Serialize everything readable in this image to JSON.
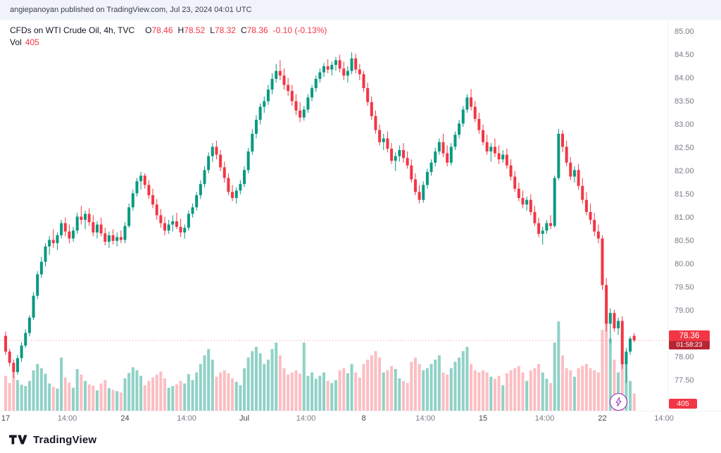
{
  "attribution": {
    "text": "angiepanoyan published on TradingView.com, Jul 23, 2024 04:01 UTC"
  },
  "legend": {
    "symbol_title": "CFDs on WTI Crude Oil, 4h, TVC",
    "o_label": "O",
    "o_value": "78.46",
    "h_label": "H",
    "h_value": "78.52",
    "l_label": "L",
    "l_value": "78.32",
    "c_label": "C",
    "c_value": "78.36",
    "change": "-0.10 (-0.13%)",
    "vol_label": "Vol",
    "vol_value": "405"
  },
  "price_axis": {
    "ticks": [
      "85.00",
      "84.50",
      "84.00",
      "83.50",
      "83.00",
      "82.50",
      "82.00",
      "81.50",
      "81.00",
      "80.50",
      "80.00",
      "79.50",
      "79.00",
      "78.50",
      "78.00",
      "77.50"
    ],
    "last_price_badge": {
      "price": "78.36",
      "countdown": "01:58:23"
    },
    "volume_badge": "405"
  },
  "time_axis": {
    "labels": [
      {
        "text": "17",
        "index": 0,
        "major": true
      },
      {
        "text": "14:00",
        "index": 15.5,
        "major": false
      },
      {
        "text": "24",
        "index": 30,
        "major": true
      },
      {
        "text": "14:00",
        "index": 45.5,
        "major": false
      },
      {
        "text": "Jul",
        "index": 60,
        "major": true
      },
      {
        "text": "14:00",
        "index": 75.5,
        "major": false
      },
      {
        "text": "8",
        "index": 90,
        "major": true
      },
      {
        "text": "14:00",
        "index": 105.5,
        "major": false
      },
      {
        "text": "15",
        "index": 120,
        "major": true
      },
      {
        "text": "14:00",
        "index": 135.5,
        "major": false
      },
      {
        "text": "22",
        "index": 150,
        "major": true
      },
      {
        "text": "14:00",
        "index": 165.5,
        "major": false
      }
    ]
  },
  "footer": {
    "brand": "TradingView"
  },
  "colors": {
    "up": "#089981",
    "down": "#f23645",
    "volume_up": "rgba(8,153,129,0.45)",
    "volume_down": "rgba(242,54,69,0.32)",
    "badge": "#f23645",
    "accent_purple": "#9c27b0"
  },
  "chart_data": {
    "type": "candlestick",
    "title": "CFDs on WTI Crude Oil, 4h, TVC",
    "symbol": "CFDs on WTI Crude Oil",
    "interval": "4h",
    "exchange": "TVC",
    "last": {
      "open": 78.46,
      "high": 78.52,
      "low": 78.32,
      "close": 78.36,
      "change": -0.1,
      "change_pct": -0.13,
      "volume": 405,
      "bar_time_remaining": "01:58:23"
    },
    "ylim": [
      76.85,
      85.25
    ],
    "x_range": "Jun 17 - Jul 23, 2024",
    "volume_scale_max": 2400,
    "ohlc_format": [
      "open",
      "high",
      "low",
      "close",
      "volume"
    ],
    "candles": [
      [
        78.46,
        78.55,
        78.05,
        78.12,
        820
      ],
      [
        78.12,
        78.18,
        77.8,
        77.88,
        650
      ],
      [
        77.88,
        77.95,
        77.55,
        77.68,
        900
      ],
      [
        77.68,
        78.05,
        77.62,
        77.98,
        720
      ],
      [
        77.98,
        78.32,
        77.9,
        78.25,
        610
      ],
      [
        78.25,
        78.6,
        78.2,
        78.52,
        580
      ],
      [
        78.52,
        78.9,
        78.45,
        78.85,
        700
      ],
      [
        78.85,
        79.4,
        78.8,
        79.32,
        950
      ],
      [
        79.32,
        79.85,
        79.25,
        79.78,
        1100
      ],
      [
        79.78,
        80.15,
        79.7,
        80.05,
        1000
      ],
      [
        80.05,
        80.45,
        79.95,
        80.38,
        870
      ],
      [
        80.38,
        80.6,
        80.2,
        80.52,
        640
      ],
      [
        80.52,
        80.75,
        80.35,
        80.45,
        560
      ],
      [
        80.45,
        80.68,
        80.3,
        80.62,
        520
      ],
      [
        80.62,
        80.95,
        80.55,
        80.88,
        1250
      ],
      [
        80.88,
        81.0,
        80.6,
        80.7,
        780
      ],
      [
        80.7,
        80.85,
        80.45,
        80.55,
        660
      ],
      [
        80.55,
        80.8,
        80.48,
        80.72,
        540
      ],
      [
        80.72,
        81.1,
        80.65,
        81.02,
        980
      ],
      [
        81.02,
        81.25,
        80.85,
        80.95,
        850
      ],
      [
        80.95,
        81.15,
        80.75,
        81.08,
        700
      ],
      [
        81.08,
        81.2,
        80.82,
        80.9,
        620
      ],
      [
        80.9,
        81.05,
        80.6,
        80.68,
        590
      ],
      [
        80.68,
        80.92,
        80.55,
        80.85,
        480
      ],
      [
        80.85,
        81.0,
        80.6,
        80.66,
        640
      ],
      [
        80.66,
        80.78,
        80.4,
        80.48,
        720
      ],
      [
        80.48,
        80.7,
        80.35,
        80.62,
        530
      ],
      [
        80.62,
        80.75,
        80.42,
        80.5,
        490
      ],
      [
        80.5,
        80.68,
        80.38,
        80.58,
        460
      ],
      [
        80.58,
        80.72,
        80.45,
        80.52,
        430
      ],
      [
        80.52,
        80.9,
        80.45,
        80.82,
        760
      ],
      [
        80.82,
        81.3,
        80.78,
        81.22,
        890
      ],
      [
        81.22,
        81.6,
        81.15,
        81.52,
        1020
      ],
      [
        81.52,
        81.85,
        81.45,
        81.78,
        950
      ],
      [
        81.78,
        81.98,
        81.6,
        81.9,
        820
      ],
      [
        81.9,
        81.95,
        81.62,
        81.7,
        600
      ],
      [
        81.7,
        81.8,
        81.4,
        81.48,
        700
      ],
      [
        81.48,
        81.62,
        81.2,
        81.28,
        780
      ],
      [
        81.28,
        81.4,
        80.95,
        81.05,
        850
      ],
      [
        81.05,
        81.18,
        80.78,
        80.88,
        920
      ],
      [
        80.88,
        81.02,
        80.62,
        80.72,
        760
      ],
      [
        80.72,
        80.95,
        80.65,
        80.85,
        540
      ],
      [
        80.85,
        81.05,
        80.7,
        80.92,
        580
      ],
      [
        80.92,
        81.1,
        80.75,
        80.8,
        620
      ],
      [
        80.8,
        80.98,
        80.58,
        80.68,
        700
      ],
      [
        80.68,
        80.85,
        80.55,
        80.78,
        640
      ],
      [
        80.78,
        81.15,
        80.72,
        81.08,
        860
      ],
      [
        81.08,
        81.3,
        81.0,
        81.22,
        720
      ],
      [
        81.22,
        81.55,
        81.15,
        81.48,
        900
      ],
      [
        81.48,
        81.8,
        81.4,
        81.72,
        1100
      ],
      [
        81.72,
        82.1,
        81.65,
        82.02,
        1300
      ],
      [
        82.02,
        82.4,
        81.95,
        82.32,
        1450
      ],
      [
        82.32,
        82.6,
        82.2,
        82.52,
        1200
      ],
      [
        82.52,
        82.65,
        82.25,
        82.35,
        800
      ],
      [
        82.35,
        82.45,
        82.0,
        82.08,
        900
      ],
      [
        82.08,
        82.2,
        81.75,
        81.85,
        950
      ],
      [
        81.85,
        81.95,
        81.48,
        81.55,
        880
      ],
      [
        81.55,
        81.7,
        81.35,
        81.42,
        760
      ],
      [
        81.42,
        81.65,
        81.3,
        81.58,
        680
      ],
      [
        81.58,
        81.8,
        81.5,
        81.72,
        600
      ],
      [
        81.72,
        82.1,
        81.65,
        82.02,
        1000
      ],
      [
        82.02,
        82.5,
        81.95,
        82.42,
        1250
      ],
      [
        82.42,
        82.9,
        82.35,
        82.8,
        1400
      ],
      [
        82.8,
        83.2,
        82.7,
        83.1,
        1500
      ],
      [
        83.1,
        83.45,
        83.0,
        83.38,
        1350
      ],
      [
        83.38,
        83.6,
        83.25,
        83.5,
        1100
      ],
      [
        83.5,
        83.85,
        83.42,
        83.75,
        1200
      ],
      [
        83.75,
        84.1,
        83.65,
        83.98,
        1450
      ],
      [
        83.98,
        84.3,
        83.9,
        84.15,
        1600
      ],
      [
        84.15,
        84.38,
        83.95,
        84.05,
        1300
      ],
      [
        84.05,
        84.2,
        83.75,
        83.85,
        1000
      ],
      [
        83.85,
        84.0,
        83.62,
        83.72,
        850
      ],
      [
        83.72,
        83.85,
        83.4,
        83.5,
        900
      ],
      [
        83.5,
        83.65,
        83.2,
        83.3,
        950
      ],
      [
        83.3,
        83.48,
        83.05,
        83.15,
        870
      ],
      [
        83.15,
        83.4,
        83.08,
        83.32,
        1600
      ],
      [
        83.32,
        83.65,
        83.25,
        83.58,
        820
      ],
      [
        83.58,
        83.85,
        83.5,
        83.78,
        900
      ],
      [
        83.78,
        84.05,
        83.7,
        83.98,
        750
      ],
      [
        83.98,
        84.2,
        83.9,
        84.12,
        820
      ],
      [
        84.12,
        84.32,
        84.02,
        84.25,
        900
      ],
      [
        84.25,
        84.4,
        84.1,
        84.18,
        700
      ],
      [
        84.18,
        84.35,
        84.05,
        84.28,
        650
      ],
      [
        84.28,
        84.45,
        84.15,
        84.38,
        720
      ],
      [
        84.38,
        84.5,
        84.12,
        84.2,
        950
      ],
      [
        84.2,
        84.35,
        83.95,
        84.05,
        1000
      ],
      [
        84.05,
        84.25,
        83.9,
        84.15,
        880
      ],
      [
        84.15,
        84.55,
        84.08,
        84.42,
        1100
      ],
      [
        84.42,
        84.52,
        84.1,
        84.18,
        900
      ],
      [
        84.18,
        84.3,
        83.95,
        84.08,
        780
      ],
      [
        84.08,
        84.15,
        83.7,
        83.78,
        1100
      ],
      [
        83.78,
        83.9,
        83.4,
        83.48,
        1200
      ],
      [
        83.48,
        83.6,
        83.1,
        83.18,
        1300
      ],
      [
        83.18,
        83.3,
        82.8,
        82.88,
        1400
      ],
      [
        82.88,
        83.0,
        82.55,
        82.62,
        1250
      ],
      [
        82.62,
        82.8,
        82.45,
        82.7,
        900
      ],
      [
        82.7,
        82.85,
        82.4,
        82.48,
        950
      ],
      [
        82.48,
        82.6,
        82.15,
        82.22,
        1050
      ],
      [
        82.22,
        82.4,
        82.0,
        82.32,
        980
      ],
      [
        82.32,
        82.55,
        82.2,
        82.45,
        760
      ],
      [
        82.45,
        82.6,
        82.18,
        82.28,
        700
      ],
      [
        82.28,
        82.42,
        82.05,
        82.12,
        650
      ],
      [
        82.12,
        82.25,
        81.75,
        81.82,
        1150
      ],
      [
        81.82,
        81.95,
        81.48,
        81.55,
        1250
      ],
      [
        81.55,
        81.7,
        81.3,
        81.38,
        1100
      ],
      [
        81.38,
        81.78,
        81.32,
        81.7,
        950
      ],
      [
        81.7,
        82.05,
        81.62,
        81.98,
        1000
      ],
      [
        81.98,
        82.25,
        81.9,
        82.18,
        1100
      ],
      [
        82.18,
        82.5,
        82.1,
        82.42,
        1200
      ],
      [
        82.42,
        82.7,
        82.35,
        82.62,
        1300
      ],
      [
        82.62,
        82.8,
        82.3,
        82.38,
        900
      ],
      [
        82.38,
        82.55,
        82.1,
        82.18,
        850
      ],
      [
        82.18,
        82.6,
        82.12,
        82.52,
        1000
      ],
      [
        82.52,
        82.85,
        82.45,
        82.78,
        1150
      ],
      [
        82.78,
        83.1,
        82.7,
        83.02,
        1250
      ],
      [
        83.02,
        83.4,
        82.95,
        83.32,
        1400
      ],
      [
        83.32,
        83.65,
        83.25,
        83.58,
        1500
      ],
      [
        83.58,
        83.76,
        83.3,
        83.38,
        1100
      ],
      [
        83.38,
        83.5,
        83.05,
        83.12,
        950
      ],
      [
        83.12,
        83.25,
        82.8,
        82.88,
        900
      ],
      [
        82.88,
        83.0,
        82.55,
        82.62,
        950
      ],
      [
        82.62,
        82.78,
        82.35,
        82.42,
        900
      ],
      [
        82.42,
        82.6,
        82.2,
        82.52,
        800
      ],
      [
        82.52,
        82.7,
        82.3,
        82.38,
        750
      ],
      [
        82.38,
        82.55,
        82.15,
        82.25,
        820
      ],
      [
        82.25,
        82.45,
        82.18,
        82.35,
        600
      ],
      [
        82.35,
        82.48,
        82.05,
        82.12,
        880
      ],
      [
        82.12,
        82.25,
        81.8,
        81.88,
        950
      ],
      [
        81.88,
        82.0,
        81.55,
        81.62,
        1000
      ],
      [
        81.62,
        81.75,
        81.35,
        81.42,
        1050
      ],
      [
        81.42,
        81.58,
        81.2,
        81.28,
        900
      ],
      [
        81.28,
        81.45,
        81.15,
        81.38,
        700
      ],
      [
        81.38,
        81.5,
        81.05,
        81.12,
        950
      ],
      [
        81.12,
        81.25,
        80.82,
        80.88,
        1000
      ],
      [
        80.88,
        81.0,
        80.58,
        80.65,
        1100
      ],
      [
        80.65,
        80.8,
        80.42,
        80.72,
        900
      ],
      [
        80.72,
        80.95,
        80.65,
        80.88,
        750
      ],
      [
        80.88,
        81.05,
        80.75,
        80.82,
        650
      ],
      [
        80.82,
        81.9,
        80.78,
        81.85,
        1600
      ],
      [
        81.85,
        82.9,
        81.8,
        82.8,
        2100
      ],
      [
        82.8,
        82.88,
        82.4,
        82.52,
        1300
      ],
      [
        82.52,
        82.65,
        82.1,
        82.18,
        1000
      ],
      [
        82.18,
        82.3,
        81.8,
        81.88,
        950
      ],
      [
        81.88,
        82.1,
        81.75,
        82.02,
        800
      ],
      [
        82.02,
        82.15,
        81.6,
        81.68,
        1000
      ],
      [
        81.68,
        81.85,
        81.3,
        81.38,
        1050
      ],
      [
        81.38,
        81.55,
        81.05,
        81.12,
        1100
      ],
      [
        81.12,
        81.3,
        80.85,
        80.95,
        1000
      ],
      [
        80.95,
        81.1,
        80.6,
        80.7,
        950
      ],
      [
        80.7,
        80.85,
        80.45,
        80.55,
        900
      ],
      [
        80.55,
        80.62,
        79.45,
        79.55,
        1900
      ],
      [
        79.55,
        79.7,
        78.55,
        78.72,
        2400
      ],
      [
        78.72,
        79.05,
        78.3,
        78.95,
        1700
      ],
      [
        78.95,
        79.02,
        78.55,
        78.62,
        1200
      ],
      [
        78.62,
        78.85,
        78.48,
        78.78,
        900
      ],
      [
        78.78,
        78.88,
        77.75,
        77.85,
        1500
      ],
      [
        77.85,
        78.2,
        77.45,
        78.12,
        1100
      ],
      [
        78.12,
        78.45,
        78.05,
        78.4,
        700
      ],
      [
        78.46,
        78.52,
        78.32,
        78.36,
        405
      ]
    ]
  }
}
